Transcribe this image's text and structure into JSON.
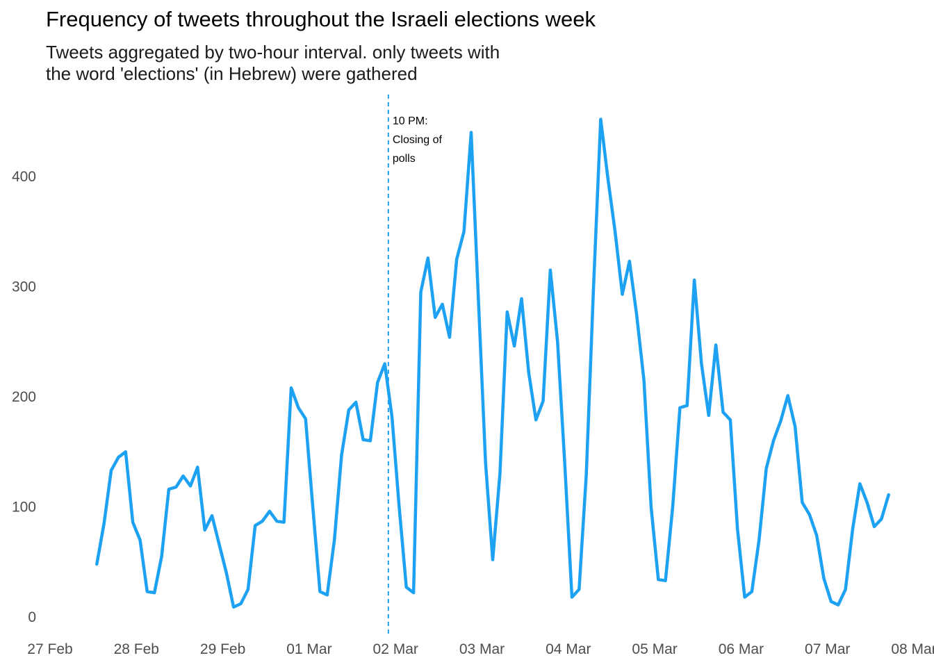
{
  "chart_data": {
    "type": "line",
    "title": "Frequency of tweets throughout the Israeli elections week",
    "subtitle": "Tweets aggregated by two-hour interval. only tweets with\nthe word 'elections' (in Hebrew) were gathered",
    "xlabel": "",
    "ylabel": "",
    "x_start": "27 Feb",
    "x_step_hours": 2,
    "x_ticks": [
      "27 Feb",
      "28 Feb",
      "29 Feb",
      "01 Mar",
      "02 Mar",
      "03 Mar",
      "04 Mar",
      "05 Mar",
      "06 Mar",
      "07 Mar",
      "08 Mar"
    ],
    "y_ticks": [
      0,
      100,
      200,
      300,
      400
    ],
    "ylim": [
      0,
      455
    ],
    "grid": false,
    "line_color": "#1da1f2",
    "values": [
      48,
      85,
      133,
      145,
      150,
      86,
      70,
      23,
      22,
      55,
      116,
      118,
      128,
      119,
      136,
      79,
      92,
      66,
      40,
      9,
      12,
      25,
      83,
      87,
      96,
      87,
      86,
      208,
      190,
      180,
      100,
      23,
      20,
      70,
      147,
      188,
      195,
      161,
      160,
      213,
      230,
      182,
      100,
      27,
      22,
      295,
      326,
      272,
      284,
      254,
      325,
      350,
      440,
      290,
      140,
      52,
      130,
      277,
      246,
      289,
      222,
      179,
      196,
      315,
      250,
      140,
      18,
      25,
      130,
      300,
      452,
      398,
      350,
      293,
      323,
      274,
      215,
      100,
      34,
      33,
      100,
      190,
      192,
      306,
      230,
      183,
      247,
      186,
      179,
      80,
      18,
      23,
      70,
      135,
      160,
      178,
      201,
      173,
      104,
      93,
      74,
      35,
      14,
      11,
      25,
      80,
      121,
      104,
      82,
      89,
      111
    ],
    "annotations": [
      {
        "x": "02 Mar 22:00",
        "text_lines": [
          "10 PM:",
          "Closing of",
          "polls"
        ],
        "line_style": "dashed",
        "line_color": "#1da1f2"
      }
    ]
  }
}
